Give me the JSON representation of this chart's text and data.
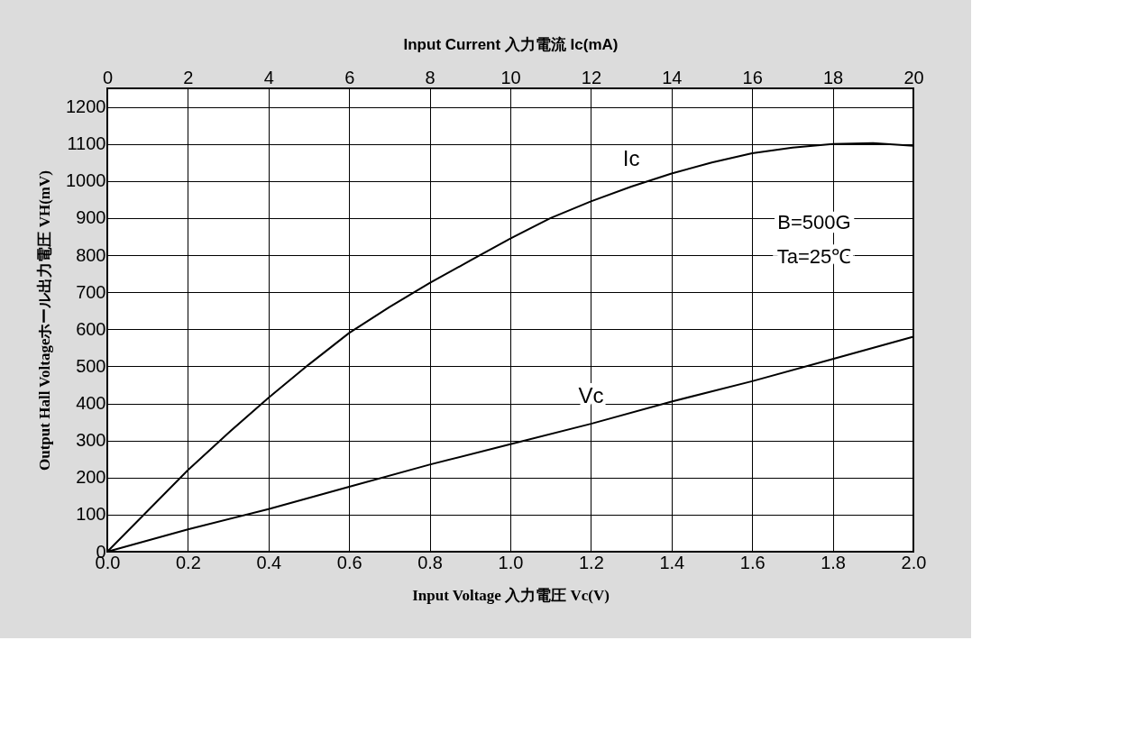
{
  "chart_data": {
    "type": "line",
    "xlabel": "Input Voltage  入力電圧  Vc(V)",
    "x2label": "Input Current  入力電流 Ic(mA)",
    "ylabel": "Output Hall Voltageホール出力電圧  VH(mV)",
    "annotations": [
      "B=500G",
      "Ta=25℃"
    ],
    "xlim": [
      0,
      2
    ],
    "xticks": [
      {
        "value": 0,
        "label": "0.0"
      },
      {
        "value": 0.2,
        "label": "0.2"
      },
      {
        "value": 0.4,
        "label": "0.4"
      },
      {
        "value": 0.6,
        "label": "0.6"
      },
      {
        "value": 0.8,
        "label": "0.8"
      },
      {
        "value": 1,
        "label": "1.0"
      },
      {
        "value": 1.2,
        "label": "1.2"
      },
      {
        "value": 1.4,
        "label": "1.4"
      },
      {
        "value": 1.6,
        "label": "1.6"
      },
      {
        "value": 1.8,
        "label": "1.8"
      },
      {
        "value": 2,
        "label": "2.0"
      }
    ],
    "x2lim": [
      0,
      20
    ],
    "x2ticks": [
      0,
      2,
      4,
      6,
      8,
      10,
      12,
      14,
      16,
      18,
      20
    ],
    "ylim": [
      0,
      1250
    ],
    "yticks": [
      0,
      100,
      200,
      300,
      400,
      500,
      600,
      700,
      800,
      900,
      1000,
      1100,
      1200
    ],
    "grid": true,
    "marker": "none",
    "line_style": "solid",
    "series": [
      {
        "name": "Ic",
        "color": "#000000",
        "axis": "x2",
        "x": [
          0,
          1,
          2,
          3,
          4,
          5,
          6,
          7,
          8,
          9,
          10,
          11,
          12,
          13,
          14,
          15,
          16,
          17,
          18,
          19,
          20
        ],
        "values": [
          0,
          110,
          220,
          320,
          415,
          505,
          590,
          660,
          725,
          785,
          845,
          900,
          945,
          985,
          1020,
          1050,
          1075,
          1090,
          1100,
          1102,
          1095
        ]
      },
      {
        "name": "Vc",
        "color": "#000000",
        "x": [
          0,
          0.2,
          0.4,
          0.6,
          0.8,
          1.0,
          1.2,
          1.4,
          1.6,
          1.8,
          2.0
        ],
        "values": [
          0,
          60,
          115,
          175,
          235,
          290,
          345,
          405,
          460,
          520,
          580
        ]
      }
    ]
  }
}
